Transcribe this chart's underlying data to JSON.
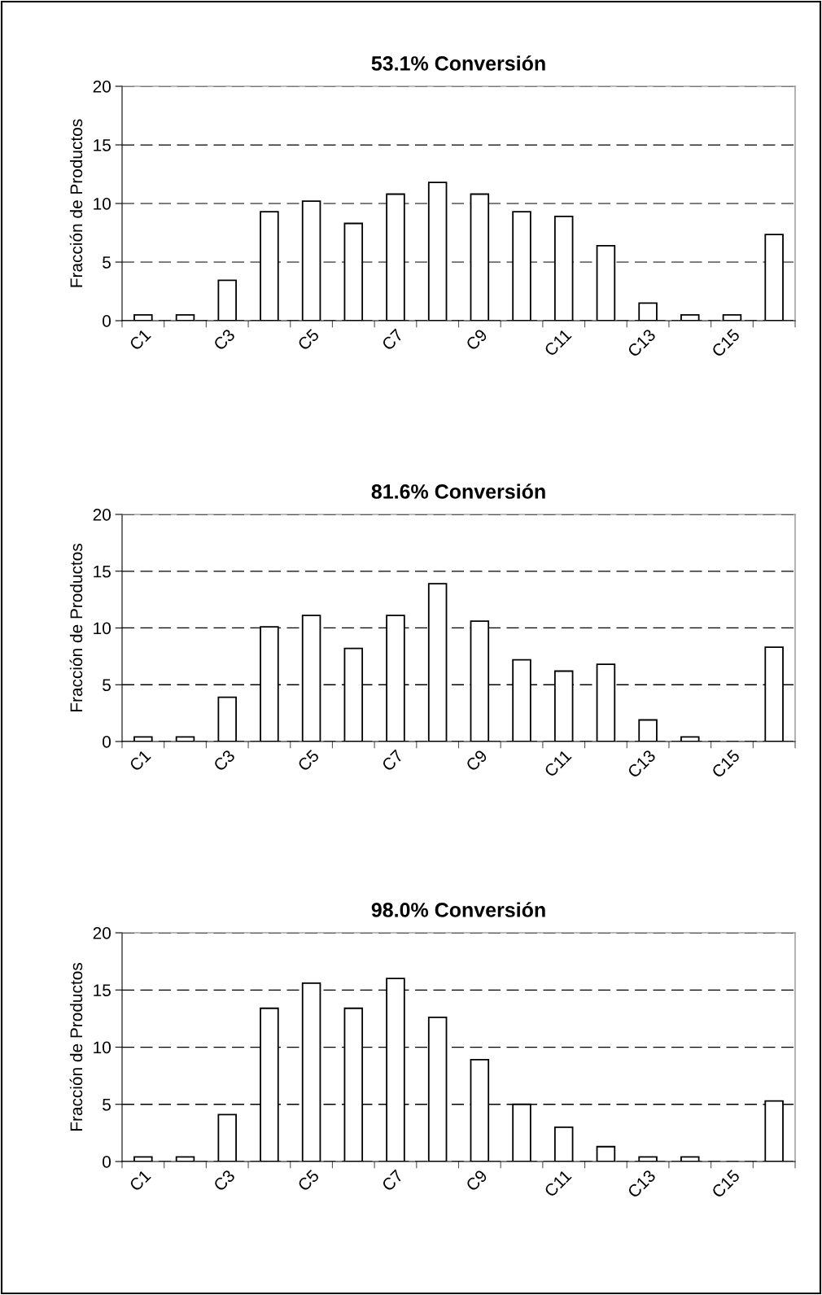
{
  "chart_data": [
    {
      "type": "bar",
      "title": "53.1% Conversión",
      "ylabel": "Fracción de Productos",
      "categories": [
        "C1",
        null,
        "C3",
        null,
        "C5",
        null,
        "C7",
        null,
        "C9",
        null,
        "C11",
        null,
        "C13",
        null,
        "C15",
        null
      ],
      "color": "#ffffff",
      "values": [
        0.5,
        0.5,
        3.45,
        9.3,
        10.2,
        8.3,
        10.8,
        11.8,
        10.8,
        9.3,
        8.9,
        6.4,
        1.5,
        0.5,
        0.5,
        7.35
      ],
      "ylim": [
        0,
        20
      ],
      "yticks": [
        0,
        5,
        10,
        15,
        20
      ],
      "grid": "y"
    },
    {
      "type": "bar",
      "title": "81.6% Conversión",
      "ylabel": "Fracción de Productos",
      "categories": [
        "C1",
        null,
        "C3",
        null,
        "C5",
        null,
        "C7",
        null,
        "C9",
        null,
        "C11",
        null,
        "C13",
        null,
        "C15",
        null
      ],
      "color": "#ffffff",
      "values": [
        0.4,
        0.4,
        3.9,
        10.1,
        11.1,
        8.2,
        11.1,
        13.9,
        10.6,
        7.2,
        6.2,
        6.8,
        1.9,
        0.4,
        null,
        8.3
      ],
      "ylim": [
        0,
        20
      ],
      "yticks": [
        0,
        5,
        10,
        15,
        20
      ],
      "grid": "y"
    },
    {
      "type": "bar",
      "title": "98.0% Conversión",
      "ylabel": "Fracción de Productos",
      "categories": [
        "C1",
        null,
        "C3",
        null,
        "C5",
        null,
        "C7",
        null,
        "C9",
        null,
        "C11",
        null,
        "C13",
        null,
        "C15",
        null
      ],
      "color": "#ffffff",
      "values": [
        0.4,
        0.4,
        4.1,
        13.4,
        15.6,
        13.4,
        16.0,
        12.6,
        8.9,
        5.0,
        3.0,
        1.3,
        0.4,
        0.4,
        null,
        5.3
      ],
      "ylim": [
        0,
        20
      ],
      "yticks": [
        0,
        5,
        10,
        15,
        20
      ],
      "grid": "y"
    }
  ]
}
